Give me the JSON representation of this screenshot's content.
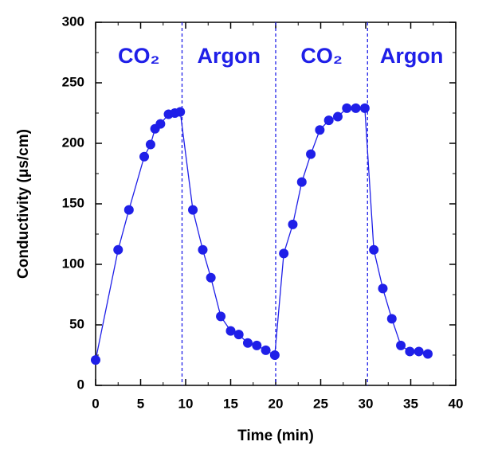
{
  "chart_data": {
    "type": "line",
    "x_label": "Time (min)",
    "y_label": "Conductivity (μs/cm)",
    "color": "#1f1fe8",
    "x": [
      0,
      2.5,
      3.7,
      5.4,
      6.1,
      6.6,
      7.2,
      8.1,
      8.8,
      9.4,
      10.8,
      11.9,
      12.8,
      13.9,
      15.0,
      15.9,
      16.9,
      17.9,
      18.9,
      19.9,
      20.9,
      21.9,
      22.9,
      23.9,
      24.9,
      25.9,
      26.9,
      27.9,
      28.9,
      29.9,
      30.9,
      31.9,
      32.9,
      33.9,
      34.9,
      35.9,
      36.9
    ],
    "values": [
      21,
      112,
      145,
      189,
      199,
      212,
      216,
      224,
      225,
      226,
      145,
      112,
      89,
      57,
      45,
      42,
      35,
      33,
      29,
      25,
      109,
      133,
      168,
      191,
      211,
      219,
      222,
      229,
      229,
      229,
      112,
      80,
      55,
      33,
      28,
      28,
      26
    ],
    "xlim": [
      0,
      40
    ],
    "xticks": [
      0,
      5,
      10,
      15,
      20,
      25,
      30,
      35,
      40
    ],
    "ylim": [
      0,
      300
    ],
    "yticks": [
      0,
      50,
      100,
      150,
      200,
      250,
      300
    ],
    "phase_lines": [
      9.6,
      20,
      30.2
    ],
    "annotations": [
      "CO₂",
      "Argon",
      "CO₂",
      "Argon"
    ]
  }
}
